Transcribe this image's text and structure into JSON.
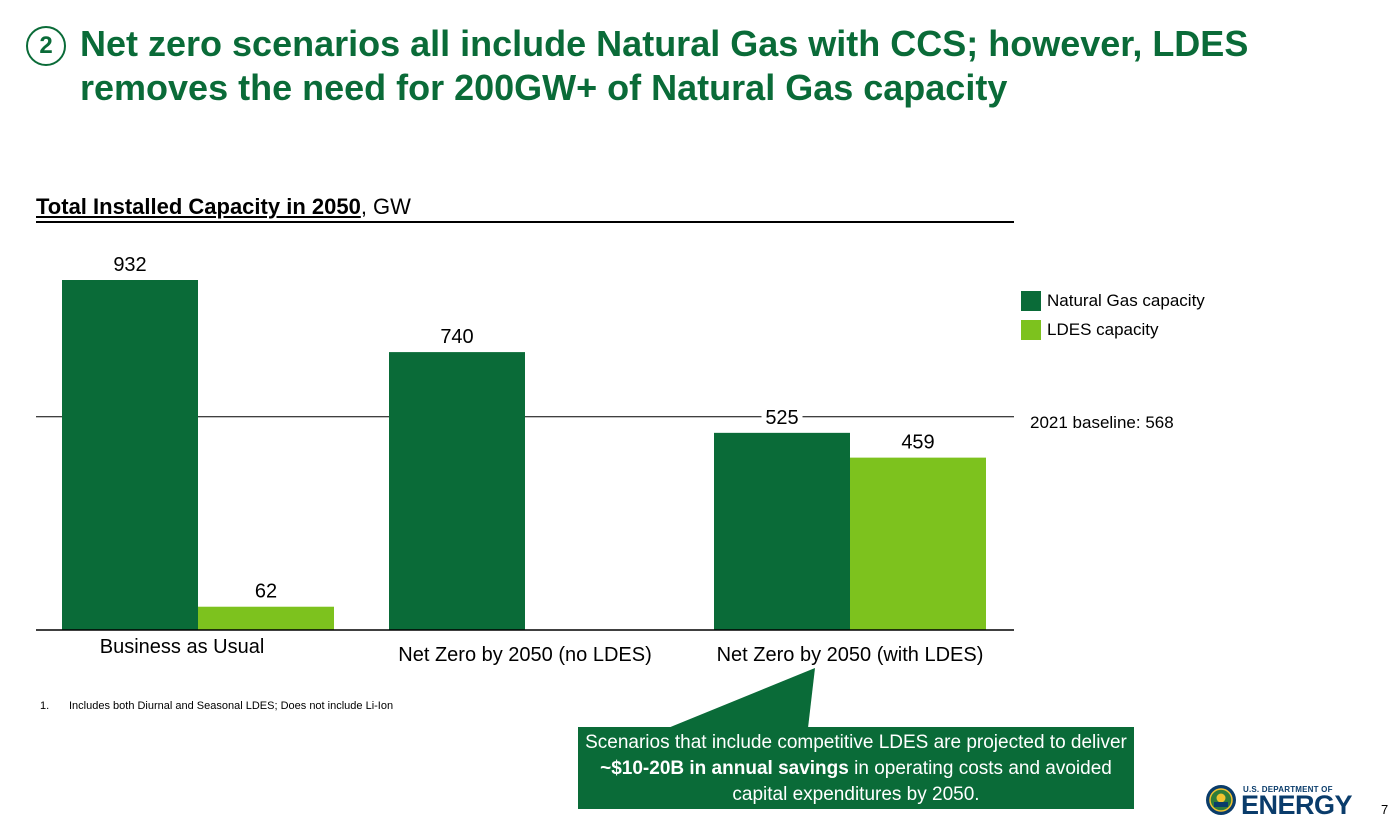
{
  "header": {
    "step_number": "2",
    "title": "Net zero scenarios all include Natural Gas with CCS; however, LDES removes the need for 200GW+ of Natural Gas capacity"
  },
  "chart_data": {
    "type": "bar",
    "title": "Total Installed Capacity in 2050",
    "unit": "GW",
    "categories": [
      "Business as Usual",
      "Net Zero by 2050 (no LDES)",
      "Net Zero by 2050 (with LDES)"
    ],
    "series": [
      {
        "name": "Natural Gas capacity",
        "color": "#0a6b38",
        "values": [
          932,
          740,
          525
        ]
      },
      {
        "name": "LDES capacity",
        "color": "#7dc21e",
        "values": [
          62,
          null,
          459
        ]
      }
    ],
    "data_labels": [
      [
        "932",
        "740",
        "525"
      ],
      [
        "62",
        "",
        "459"
      ]
    ],
    "baseline": {
      "value": 568,
      "label": "2021 baseline: 568"
    },
    "ylim": [
      0,
      932
    ],
    "grid": false,
    "legend_position": "right"
  },
  "footnote": {
    "number": "1.",
    "text": "Includes both Diurnal and Seasonal LDES; Does not include Li-Ion"
  },
  "callout": {
    "text_before": "Scenarios that include competitive LDES are projected to deliver ",
    "text_bold": "~$10-20B in annual savings",
    "text_after": " in operating costs and avoided capital expenditures by 2050."
  },
  "logo": {
    "department": "U.S. DEPARTMENT OF",
    "name": "ENERGY"
  },
  "page_number": "7",
  "colors": {
    "brand_green": "#0a6b38",
    "light_green": "#7dc21e"
  }
}
